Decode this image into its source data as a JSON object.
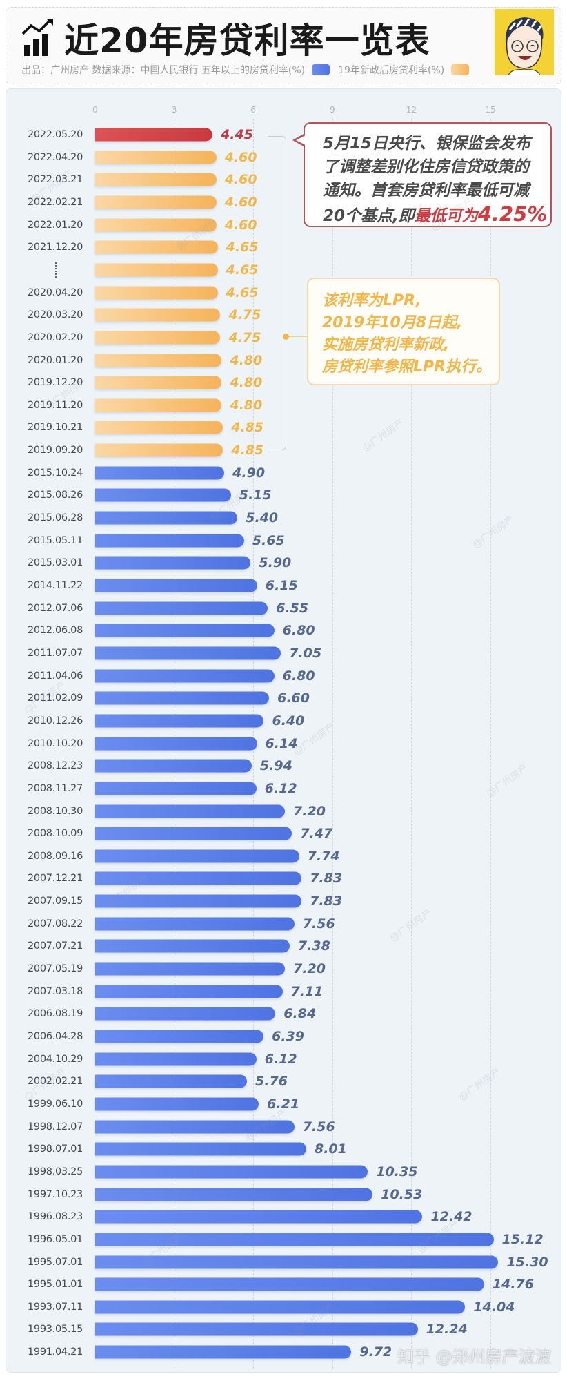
{
  "header": {
    "title": "近20年房贷利率一览表",
    "subtitle": "出品：广州房产  数据来源：中国人民银行  五年以上的房贷利率(%)",
    "legend_orange": "19年新政后房贷利率(%)",
    "icon": "chart-trend-icon",
    "avatar": "cartoon-avatar"
  },
  "colors": {
    "blue": "#5a7de8",
    "orange": "#f6b35a",
    "red": "#c83a40"
  },
  "callouts": {
    "policy": {
      "line1": "5月15日央行、银保监会发布",
      "line2": "了调整差别化住房信贷政策的",
      "line3": "通知。首套房贷利率最低可减",
      "line4_a": "20个基点,即",
      "line4_b": "最低可为",
      "line4_c": "4.25%"
    },
    "lpr": {
      "line1": "该利率为LPR,",
      "line2": "2019年10月8日起,",
      "line3": "实施房贷利率新政,",
      "line4": "房贷利率参照LPR执行。"
    }
  },
  "watermark": "@广州房产",
  "credit": "知乎 @郑州房产波波",
  "chart_data": {
    "type": "bar",
    "orientation": "horizontal",
    "xlim": [
      0,
      15.5
    ],
    "ticks": [
      "0",
      "3",
      "6",
      "9",
      "12",
      "15"
    ],
    "grid": true,
    "legend": "top",
    "series_legend": [
      {
        "name": "五年以上的房贷利率(%)",
        "color": "#5a7de8"
      },
      {
        "name": "19年新政后房贷利率(%)",
        "color": "#f6b35a"
      }
    ],
    "rows": [
      {
        "date": "2022.05.20",
        "value": 4.45,
        "group": "red"
      },
      {
        "date": "2022.04.20",
        "value": 4.6,
        "group": "orange"
      },
      {
        "date": "2022.03.21",
        "value": 4.6,
        "group": "orange"
      },
      {
        "date": "2022.02.21",
        "value": 4.6,
        "group": "orange"
      },
      {
        "date": "2022.01.20",
        "value": 4.6,
        "group": "orange"
      },
      {
        "date": "2021.12.20",
        "value": 4.65,
        "group": "orange"
      },
      {
        "date": "⋮",
        "value": 4.65,
        "group": "orange"
      },
      {
        "date": "2020.04.20",
        "value": 4.65,
        "group": "orange"
      },
      {
        "date": "2020.03.20",
        "value": 4.75,
        "group": "orange"
      },
      {
        "date": "2020.02.20",
        "value": 4.75,
        "group": "orange"
      },
      {
        "date": "2020.01.20",
        "value": 4.8,
        "group": "orange"
      },
      {
        "date": "2019.12.20",
        "value": 4.8,
        "group": "orange"
      },
      {
        "date": "2019.11.20",
        "value": 4.8,
        "group": "orange"
      },
      {
        "date": "2019.10.21",
        "value": 4.85,
        "group": "orange"
      },
      {
        "date": "2019.09.20",
        "value": 4.85,
        "group": "orange"
      },
      {
        "date": "2015.10.24",
        "value": 4.9,
        "group": "blue"
      },
      {
        "date": "2015.08.26",
        "value": 5.15,
        "group": "blue"
      },
      {
        "date": "2015.06.28",
        "value": 5.4,
        "group": "blue"
      },
      {
        "date": "2015.05.11",
        "value": 5.65,
        "group": "blue"
      },
      {
        "date": "2015.03.01",
        "value": 5.9,
        "group": "blue"
      },
      {
        "date": "2014.11.22",
        "value": 6.15,
        "group": "blue"
      },
      {
        "date": "2012.07.06",
        "value": 6.55,
        "group": "blue"
      },
      {
        "date": "2012.06.08",
        "value": 6.8,
        "group": "blue"
      },
      {
        "date": "2011.07.07",
        "value": 7.05,
        "group": "blue"
      },
      {
        "date": "2011.04.06",
        "value": 6.8,
        "group": "blue"
      },
      {
        "date": "2011.02.09",
        "value": 6.6,
        "group": "blue"
      },
      {
        "date": "2010.12.26",
        "value": 6.4,
        "group": "blue"
      },
      {
        "date": "2010.10.20",
        "value": 6.14,
        "group": "blue"
      },
      {
        "date": "2008.12.23",
        "value": 5.94,
        "group": "blue"
      },
      {
        "date": "2008.11.27",
        "value": 6.12,
        "group": "blue"
      },
      {
        "date": "2008.10.30",
        "value": 7.2,
        "group": "blue"
      },
      {
        "date": "2008.10.09",
        "value": 7.47,
        "group": "blue"
      },
      {
        "date": "2008.09.16",
        "value": 7.74,
        "group": "blue"
      },
      {
        "date": "2007.12.21",
        "value": 7.83,
        "group": "blue"
      },
      {
        "date": "2007.09.15",
        "value": 7.83,
        "group": "blue"
      },
      {
        "date": "2007.08.22",
        "value": 7.56,
        "group": "blue"
      },
      {
        "date": "2007.07.21",
        "value": 7.38,
        "group": "blue"
      },
      {
        "date": "2007.05.19",
        "value": 7.2,
        "group": "blue"
      },
      {
        "date": "2007.03.18",
        "value": 7.11,
        "group": "blue"
      },
      {
        "date": "2006.08.19",
        "value": 6.84,
        "group": "blue"
      },
      {
        "date": "2006.04.28",
        "value": 6.39,
        "group": "blue"
      },
      {
        "date": "2004.10.29",
        "value": 6.12,
        "group": "blue"
      },
      {
        "date": "2002.02.21",
        "value": 5.76,
        "group": "blue"
      },
      {
        "date": "1999.06.10",
        "value": 6.21,
        "group": "blue"
      },
      {
        "date": "1998.12.07",
        "value": 7.56,
        "group": "blue"
      },
      {
        "date": "1998.07.01",
        "value": 8.01,
        "group": "blue"
      },
      {
        "date": "1998.03.25",
        "value": 10.35,
        "group": "blue"
      },
      {
        "date": "1997.10.23",
        "value": 10.53,
        "group": "blue"
      },
      {
        "date": "1996.08.23",
        "value": 12.42,
        "group": "blue"
      },
      {
        "date": "1996.05.01",
        "value": 15.12,
        "group": "blue"
      },
      {
        "date": "1995.07.01",
        "value": 15.3,
        "group": "blue"
      },
      {
        "date": "1995.01.01",
        "value": 14.76,
        "group": "blue"
      },
      {
        "date": "1993.07.11",
        "value": 14.04,
        "group": "blue"
      },
      {
        "date": "1993.05.15",
        "value": 12.24,
        "group": "blue"
      },
      {
        "date": "1991.04.21",
        "value": 9.72,
        "group": "blue"
      }
    ]
  }
}
